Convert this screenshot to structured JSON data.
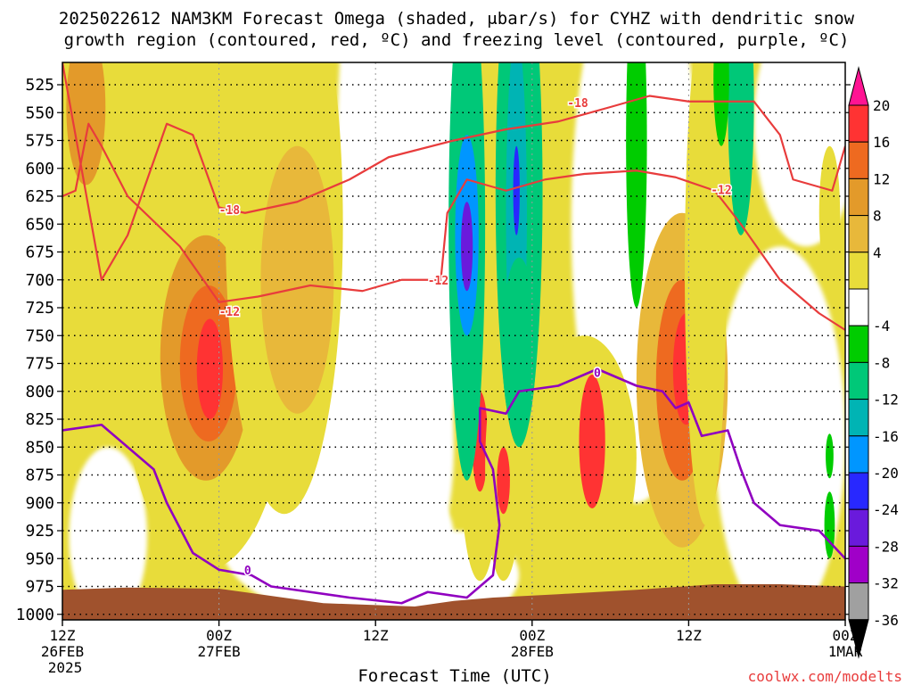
{
  "chart_data": {
    "type": "heatmap",
    "title_line1": "2025022612 NAM3KM Forecast Omega (shaded, μbar/s) for CYHZ with dendritic snow",
    "title_line2": "growth region (contoured, red, ºC) and freezing level (contoured, purple, ºC)",
    "xlabel": "Forecast Time (UTC)",
    "credit": "coolwx.com/modelts",
    "y_axis": {
      "levels": [
        "525",
        "550",
        "575",
        "600",
        "625",
        "650",
        "675",
        "700",
        "725",
        "750",
        "775",
        "800",
        "825",
        "850",
        "875",
        "900",
        "925",
        "950",
        "975",
        "1000"
      ],
      "ylim": [
        505,
        1005
      ]
    },
    "x_axis": {
      "ticks": [
        {
          "hour": 0,
          "lines": [
            "12Z",
            "26FEB",
            "2025"
          ]
        },
        {
          "hour": 12,
          "lines": [
            "00Z",
            "27FEB"
          ]
        },
        {
          "hour": 24,
          "lines": [
            "12Z"
          ]
        },
        {
          "hour": 36,
          "lines": [
            "00Z",
            "28FEB"
          ]
        },
        {
          "hour": 48,
          "lines": [
            "12Z"
          ]
        },
        {
          "hour": 60,
          "lines": [
            "00Z",
            "1MAR"
          ]
        }
      ],
      "xlim": [
        0,
        60
      ]
    },
    "colorbar": {
      "labels": [
        "20",
        "16",
        "12",
        "8",
        "4",
        "-4",
        "-8",
        "-12",
        "-16",
        "-20",
        "-24",
        "-28",
        "-32",
        "-36"
      ],
      "bins": [
        {
          "color": "#ff1493"
        },
        {
          "color": "#ff3333"
        },
        {
          "color": "#ee6a20"
        },
        {
          "color": "#e39a2a"
        },
        {
          "color": "#e8b83a"
        },
        {
          "color": "#e8dc3a"
        },
        {
          "color": "#ffffff"
        },
        {
          "color": "#00cc00"
        },
        {
          "color": "#00c878"
        },
        {
          "color": "#00b4b4"
        },
        {
          "color": "#0096ff"
        },
        {
          "color": "#2828ff"
        },
        {
          "color": "#6a1adc"
        },
        {
          "color": "#a000c8"
        },
        {
          "color": "#a0a0a0"
        },
        {
          "color": "#000000"
        }
      ]
    },
    "contour_labels": [
      {
        "text": "-18",
        "hour": 12.8,
        "p": 637,
        "color": "#e83c3c"
      },
      {
        "text": "-12",
        "hour": 12.8,
        "p": 728,
        "color": "#e83c3c"
      },
      {
        "text": "-12",
        "hour": 28.8,
        "p": 700,
        "color": "#e83c3c"
      },
      {
        "text": "-18",
        "hour": 39.5,
        "p": 541,
        "color": "#e83c3c"
      },
      {
        "text": "-12",
        "hour": 50.5,
        "p": 619,
        "color": "#e83c3c"
      },
      {
        "text": "0",
        "hour": 14.2,
        "p": 960,
        "color": "#9000c0"
      },
      {
        "text": "0",
        "hour": 41.0,
        "p": 783,
        "color": "#9000c0"
      }
    ],
    "omega_blobs": [
      {
        "hour": 1.8,
        "p": 545,
        "rx": 1.5,
        "ry": 70,
        "value": 10
      },
      {
        "hour": 11,
        "p": 760,
        "rx": 6.5,
        "ry": 200,
        "value": 6
      },
      {
        "hour": 11,
        "p": 770,
        "rx": 3.5,
        "ry": 110,
        "value": 10
      },
      {
        "hour": 11.2,
        "p": 775,
        "rx": 2.2,
        "ry": 70,
        "value": 14
      },
      {
        "hour": 11.3,
        "p": 780,
        "rx": 1.0,
        "ry": 45,
        "value": 18
      },
      {
        "hour": 17,
        "p": 650,
        "rx": 4.5,
        "ry": 260,
        "value": 6
      },
      {
        "hour": 18,
        "p": 700,
        "rx": 2.8,
        "ry": 120,
        "value": 8
      },
      {
        "hour": 32,
        "p": 860,
        "rx": 1.5,
        "ry": 110,
        "value": 7
      },
      {
        "hour": 32,
        "p": 845,
        "rx": 0.6,
        "ry": 45,
        "value": 18
      },
      {
        "hour": 33.8,
        "p": 870,
        "rx": 1.4,
        "ry": 100,
        "value": 7
      },
      {
        "hour": 33.8,
        "p": 880,
        "rx": 0.5,
        "ry": 30,
        "value": 16
      },
      {
        "hour": 40,
        "p": 860,
        "rx": 4.0,
        "ry": 110,
        "value": 6
      },
      {
        "hour": 40.6,
        "p": 845,
        "rx": 1.0,
        "ry": 60,
        "value": 16
      },
      {
        "hour": 47.5,
        "p": 790,
        "rx": 3.5,
        "ry": 150,
        "value": 8
      },
      {
        "hour": 47.5,
        "p": 790,
        "rx": 2.0,
        "ry": 90,
        "value": 14
      },
      {
        "hour": 47.8,
        "p": 780,
        "rx": 1.0,
        "ry": 50,
        "value": 19
      },
      {
        "hour": 49.3,
        "p": 690,
        "rx": 1.6,
        "ry": 230,
        "value": 7
      },
      {
        "hour": 58.8,
        "p": 640,
        "rx": 0.8,
        "ry": 60,
        "value": 5
      }
    ],
    "omega_neg_blobs": [
      {
        "hour": 31,
        "p": 650,
        "rx": 1.4,
        "ry": 230,
        "value": -9
      },
      {
        "hour": 31,
        "p": 660,
        "rx": 0.9,
        "ry": 90,
        "value": -16
      },
      {
        "hour": 31,
        "p": 670,
        "rx": 0.45,
        "ry": 40,
        "value": -24
      },
      {
        "hour": 35,
        "p": 620,
        "rx": 1.8,
        "ry": 230,
        "value": -9
      },
      {
        "hour": 34.8,
        "p": 640,
        "rx": 0.8,
        "ry": 160,
        "value": -13
      },
      {
        "hour": 34.8,
        "p": 620,
        "rx": 0.25,
        "ry": 40,
        "value": -20
      },
      {
        "hour": 35,
        "p": 760,
        "rx": 1.3,
        "ry": 80,
        "value": -9
      },
      {
        "hour": 44,
        "p": 575,
        "rx": 0.8,
        "ry": 150,
        "value": -6
      },
      {
        "hour": 52,
        "p": 540,
        "rx": 1.0,
        "ry": 120,
        "value": -9
      },
      {
        "hour": 50.5,
        "p": 520,
        "rx": 0.6,
        "ry": 60,
        "value": -6
      },
      {
        "hour": 58.8,
        "p": 920,
        "rx": 0.4,
        "ry": 30,
        "value": -6
      },
      {
        "hour": 58.8,
        "p": 858,
        "rx": 0.3,
        "ry": 20,
        "value": -6
      }
    ],
    "dgz_contours": [
      {
        "label": "-18",
        "points": [
          [
            0,
            505
          ],
          [
            3,
            700
          ],
          [
            5,
            660
          ],
          [
            8,
            560
          ],
          [
            10,
            570
          ],
          [
            12,
            635
          ],
          [
            14,
            640
          ],
          [
            18,
            630
          ],
          [
            22,
            610
          ],
          [
            25,
            590
          ],
          [
            30,
            575
          ],
          [
            34,
            565
          ],
          [
            38,
            558
          ],
          [
            42,
            545
          ],
          [
            45,
            535
          ],
          [
            48,
            540
          ],
          [
            53,
            540
          ],
          [
            55,
            570
          ],
          [
            56,
            610
          ],
          [
            59,
            620
          ],
          [
            60,
            580
          ]
        ]
      },
      {
        "label": "-12",
        "points": [
          [
            0,
            625
          ],
          [
            1,
            620
          ],
          [
            2,
            560
          ],
          [
            3,
            580
          ],
          [
            5,
            625
          ],
          [
            9,
            670
          ],
          [
            12,
            720
          ],
          [
            15,
            715
          ],
          [
            19,
            705
          ],
          [
            23,
            710
          ],
          [
            26,
            700
          ],
          [
            29,
            700
          ],
          [
            29.5,
            640
          ],
          [
            31,
            610
          ],
          [
            34,
            620
          ],
          [
            37,
            610
          ],
          [
            40,
            605
          ],
          [
            44,
            602
          ],
          [
            47,
            608
          ],
          [
            50,
            620
          ],
          [
            52,
            650
          ],
          [
            55,
            700
          ],
          [
            58,
            730
          ],
          [
            60,
            745
          ]
        ]
      }
    ],
    "freezing_contours": [
      {
        "label": "0",
        "points": [
          [
            0,
            835
          ],
          [
            3,
            830
          ],
          [
            7,
            870
          ],
          [
            8,
            900
          ],
          [
            10,
            945
          ],
          [
            12,
            960
          ],
          [
            14.5,
            965
          ],
          [
            16,
            975
          ],
          [
            22,
            985
          ],
          [
            26,
            990
          ],
          [
            28,
            980
          ],
          [
            31,
            985
          ],
          [
            33,
            965
          ],
          [
            33.5,
            920
          ],
          [
            33,
            870
          ],
          [
            32,
            845
          ],
          [
            32,
            815
          ],
          [
            34,
            820
          ],
          [
            35,
            800
          ],
          [
            38,
            795
          ],
          [
            41,
            780
          ],
          [
            44,
            795
          ],
          [
            46,
            800
          ],
          [
            47,
            815
          ],
          [
            48,
            810
          ],
          [
            49,
            840
          ],
          [
            51,
            835
          ],
          [
            52,
            870
          ],
          [
            53,
            900
          ],
          [
            55,
            920
          ],
          [
            58,
            925
          ],
          [
            60,
            950
          ]
        ]
      }
    ],
    "terrain": {
      "p": 980,
      "color": "#a0522d"
    }
  }
}
